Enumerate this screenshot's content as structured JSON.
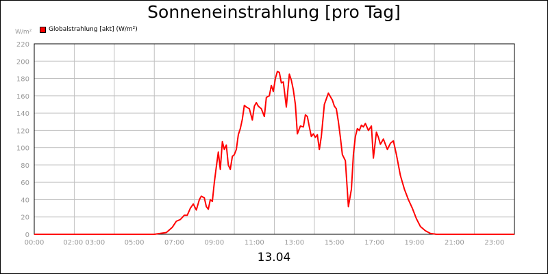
{
  "chart_data": {
    "type": "line",
    "title": "Sonneneinstrahlung [pro Tag]",
    "unit_label": "W/m²",
    "xlabel": "13.04",
    "legend": "top-left",
    "grid": true,
    "ylim": [
      0,
      220
    ],
    "xlim": [
      0,
      24
    ],
    "y_ticks": [
      "0",
      "20",
      "40",
      "60",
      "80",
      "100",
      "120",
      "140",
      "160",
      "180",
      "200",
      "220"
    ],
    "x_ticks": [
      "00:00",
      "02:00 03:00",
      "05:00",
      "07:00",
      "09:00",
      "11:00",
      "13:00",
      "15:00",
      "17:00",
      "19:00",
      "21:00",
      "23:00"
    ],
    "series": [
      {
        "name": "Globalstrahlung [akt] (W/m²)",
        "color": "#ff0000",
        "x": [
          0,
          6.0,
          6.6,
          6.9,
          7.1,
          7.3,
          7.5,
          7.65,
          7.8,
          7.95,
          8.1,
          8.25,
          8.35,
          8.5,
          8.6,
          8.7,
          8.8,
          8.9,
          9.0,
          9.1,
          9.2,
          9.3,
          9.4,
          9.5,
          9.6,
          9.7,
          9.8,
          9.9,
          10.0,
          10.1,
          10.2,
          10.3,
          10.4,
          10.5,
          10.6,
          10.75,
          10.9,
          11.0,
          11.1,
          11.2,
          11.35,
          11.5,
          11.6,
          11.75,
          11.85,
          11.95,
          12.05,
          12.15,
          12.25,
          12.35,
          12.45,
          12.6,
          12.75,
          12.85,
          12.95,
          13.05,
          13.15,
          13.3,
          13.45,
          13.55,
          13.65,
          13.75,
          13.85,
          13.95,
          14.05,
          14.15,
          14.25,
          14.35,
          14.5,
          14.7,
          14.9,
          15.0,
          15.1,
          15.2,
          15.3,
          15.4,
          15.55,
          15.7,
          15.85,
          15.95,
          16.05,
          16.15,
          16.25,
          16.35,
          16.45,
          16.55,
          16.7,
          16.85,
          16.95,
          17.1,
          17.2,
          17.3,
          17.45,
          17.55,
          17.65,
          17.8,
          17.95,
          18.1,
          18.3,
          18.5,
          18.7,
          18.9,
          19.1,
          19.3,
          19.55,
          19.8,
          20.1,
          20.4,
          24.0
        ],
        "values": [
          0,
          0,
          2,
          8,
          15,
          17,
          22,
          22,
          30,
          35,
          28,
          40,
          44,
          42,
          32,
          29,
          40,
          38,
          60,
          78,
          95,
          75,
          107,
          98,
          103,
          80,
          75,
          90,
          92,
          98,
          115,
          122,
          133,
          149,
          147,
          145,
          132,
          148,
          152,
          148,
          145,
          136,
          158,
          160,
          172,
          165,
          180,
          188,
          187,
          175,
          176,
          147,
          185,
          178,
          167,
          150,
          116,
          125,
          124,
          138,
          136,
          124,
          113,
          116,
          112,
          115,
          98,
          113,
          150,
          163,
          155,
          148,
          145,
          130,
          112,
          92,
          85,
          32,
          52,
          92,
          113,
          122,
          120,
          126,
          124,
          128,
          120,
          125,
          88,
          118,
          112,
          104,
          110,
          104,
          98,
          105,
          108,
          92,
          68,
          52,
          40,
          30,
          18,
          9,
          4,
          1,
          0,
          0,
          0
        ]
      }
    ]
  }
}
